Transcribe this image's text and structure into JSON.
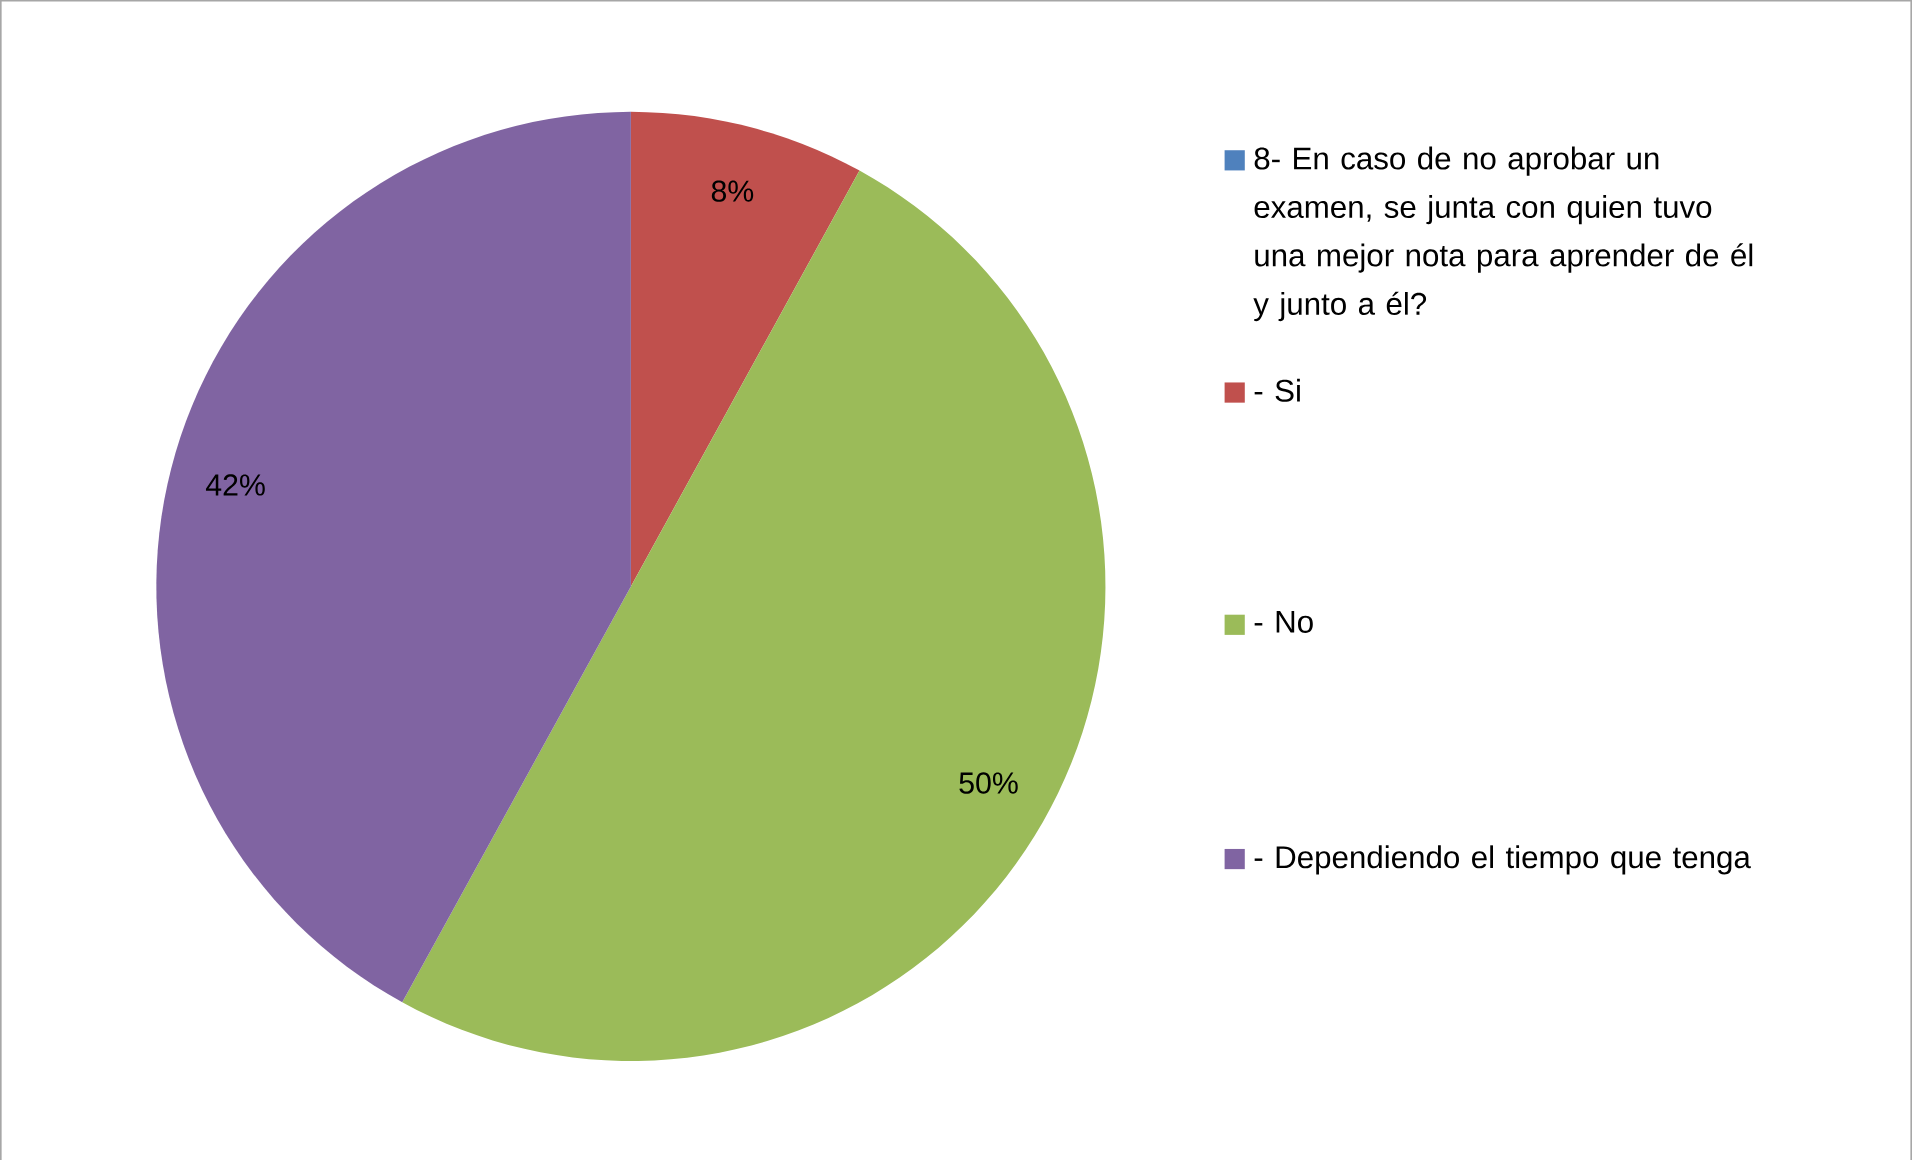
{
  "chart_data": {
    "type": "pie",
    "categories": [
      "8- En caso de no aprobar un examen, se junta con quien tuvo una mejor nota para aprender de él y junto a él?",
      "- Si",
      "- No",
      "- Dependiendo el tiempo que tenga"
    ],
    "values": [
      0,
      8,
      50,
      42
    ],
    "colors": [
      "#4f81bd",
      "#c0504d",
      "#9bbb59",
      "#8064a2"
    ],
    "value_labels": [
      null,
      "8%",
      "50%",
      "42%"
    ],
    "legend": "right"
  }
}
